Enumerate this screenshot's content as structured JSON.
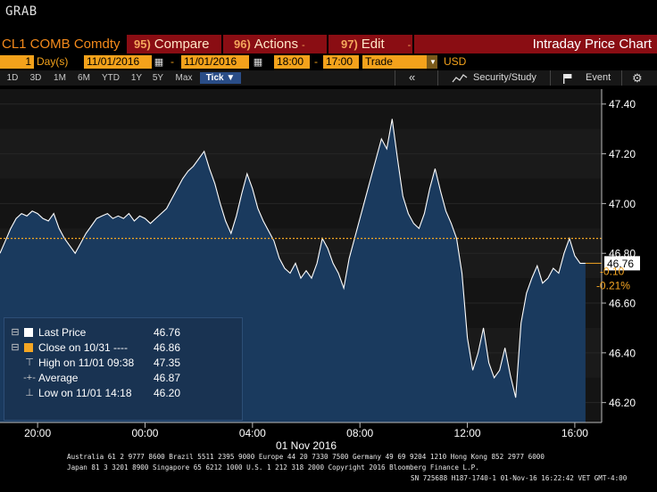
{
  "window": {
    "title": "GRAB"
  },
  "command_bar": {
    "ticker": "CL1 COMB Comdty",
    "compare": {
      "num": "95)",
      "label": "Compare"
    },
    "actions": {
      "num": "96)",
      "label": "Actions",
      "dash": "-"
    },
    "edit": {
      "num": "97)",
      "label": "Edit",
      "dash": "-"
    },
    "title": "Intraday Price Chart"
  },
  "params": {
    "period_value": "1",
    "period_unit": "Day(s)",
    "start_date": "11/01/2016",
    "end_date": "11/01/2016",
    "date_dash": "-",
    "start_time": "18:00",
    "end_time": "17:00",
    "time_dash": "-",
    "field": "Trade",
    "currency": "USD"
  },
  "toolbar": {
    "ranges": [
      "1D",
      "3D",
      "1M",
      "6M",
      "YTD",
      "1Y",
      "5Y",
      "Max"
    ],
    "tick_label": "Tick ▼",
    "collapse": "«",
    "security_study": "Security/Study",
    "event": "Event",
    "gear": "⚙",
    "icons": [
      "chevron-double-left-icon",
      "study-icon",
      "flag-icon",
      "gear-icon"
    ]
  },
  "legend": {
    "last_price": {
      "label": "Last Price",
      "value": "46.76",
      "color": "#ffffff"
    },
    "close": {
      "label": "Close on 10/31 ----",
      "value": "46.86",
      "color": "#f5a623"
    },
    "high": {
      "label": "High on 11/01 09:38",
      "value": "47.35"
    },
    "average": {
      "label": "Average",
      "value": "46.87"
    },
    "low": {
      "label": "Low on 11/01 14:18",
      "value": "46.20"
    }
  },
  "chart_data": {
    "type": "area",
    "title": "Intraday Price Chart",
    "security": "CL1 COMB Comdty",
    "xlabel": "01 Nov 2016",
    "ylabel": "",
    "x_tick_labels": [
      "20:00",
      "00:00",
      "04:00",
      "08:00",
      "12:00",
      "16:00"
    ],
    "x_ticks_hours": [
      20,
      24,
      28,
      32,
      36,
      40
    ],
    "x_range_hours": [
      18.6,
      41.0
    ],
    "y_ticks": [
      46.2,
      46.4,
      46.6,
      46.8,
      47.0,
      47.2,
      47.4
    ],
    "y_tick_labels": [
      "46.20",
      "46.40",
      "46.60",
      "46.80",
      "47.00",
      "47.20",
      "47.40"
    ],
    "ylim": [
      46.12,
      47.46
    ],
    "grid": true,
    "legend_position": "bottom-left",
    "series": [
      {
        "name": "Last Price",
        "color": "#ffffff",
        "x_hours": [
          18.6,
          18.8,
          19.0,
          19.2,
          19.4,
          19.6,
          19.8,
          20.0,
          20.2,
          20.4,
          20.6,
          20.8,
          21.0,
          21.2,
          21.4,
          21.6,
          21.8,
          22.0,
          22.2,
          22.4,
          22.6,
          22.8,
          23.0,
          23.2,
          23.4,
          23.6,
          23.8,
          24.0,
          24.2,
          24.4,
          24.6,
          24.8,
          25.0,
          25.2,
          25.4,
          25.6,
          25.8,
          26.0,
          26.2,
          26.4,
          26.6,
          26.8,
          27.0,
          27.2,
          27.4,
          27.6,
          27.8,
          28.0,
          28.2,
          28.4,
          28.6,
          28.8,
          29.0,
          29.2,
          29.4,
          29.6,
          29.8,
          30.0,
          30.2,
          30.4,
          30.6,
          30.8,
          31.0,
          31.2,
          31.4,
          31.6,
          31.8,
          32.0,
          32.2,
          32.4,
          32.6,
          32.8,
          33.0,
          33.2,
          33.4,
          33.6,
          33.8,
          34.0,
          34.2,
          34.4,
          34.6,
          34.8,
          35.0,
          35.2,
          35.4,
          35.6,
          35.8,
          36.0,
          36.2,
          36.4,
          36.6,
          36.8,
          37.0,
          37.2,
          37.4,
          37.6,
          37.8,
          38.0,
          38.2,
          38.4,
          38.6,
          38.8,
          39.0,
          39.2,
          39.4,
          39.6,
          39.8,
          40.0,
          40.2,
          40.4
        ],
        "values": [
          46.8,
          46.85,
          46.9,
          46.94,
          46.96,
          46.95,
          46.97,
          46.96,
          46.94,
          46.93,
          46.96,
          46.9,
          46.86,
          46.83,
          46.8,
          46.84,
          46.88,
          46.91,
          46.94,
          46.95,
          46.96,
          46.94,
          46.95,
          46.94,
          46.96,
          46.93,
          46.95,
          46.94,
          46.92,
          46.94,
          46.96,
          46.98,
          47.02,
          47.06,
          47.1,
          47.13,
          47.15,
          47.18,
          47.21,
          47.14,
          47.08,
          47.0,
          46.93,
          46.88,
          46.95,
          47.04,
          47.12,
          47.06,
          46.98,
          46.93,
          46.89,
          46.85,
          46.78,
          46.74,
          46.72,
          46.76,
          46.7,
          46.73,
          46.7,
          46.76,
          46.86,
          46.82,
          46.76,
          46.72,
          46.66,
          46.78,
          46.86,
          46.94,
          47.02,
          47.1,
          47.18,
          47.26,
          47.22,
          47.34,
          47.18,
          47.03,
          46.96,
          46.92,
          46.9,
          46.96,
          47.06,
          47.14,
          47.05,
          46.97,
          46.92,
          46.86,
          46.72,
          46.46,
          46.33,
          46.4,
          46.5,
          46.36,
          46.3,
          46.33,
          46.42,
          46.31,
          46.22,
          46.52,
          46.64,
          46.7,
          46.75,
          46.68,
          46.7,
          46.74,
          46.72,
          46.8,
          46.86,
          46.79,
          46.76,
          46.76
        ]
      },
      {
        "name": "Close on 10/31",
        "color": "#f5a623",
        "value": 46.86
      }
    ],
    "annotations": {
      "last_price_tag": "46.76",
      "net_change": "-0.10",
      "pct_change": "-0.21%"
    }
  },
  "footer": {
    "line1": "Australia 61 2 9777 8600 Brazil 5511 2395 9000 Europe 44 20 7330 7500 Germany 49 69 9204 1210 Hong Kong 852 2977 6000",
    "line2": "Japan 81 3 3201 8900          Singapore 65 6212 1000          U.S. 1 212 318 2000          Copyright 2016 Bloomberg Finance L.P.",
    "line3": "SN 725688 H187-1740-1 01-Nov-16 16:22:42 VET   GMT-4:00"
  },
  "colors": {
    "accent_orange": "#f4a21b",
    "command_red": "#8a0d13",
    "area_fill": "#1a3a5e",
    "chart_bg": "#131313",
    "axis_text": "#ffffff"
  }
}
